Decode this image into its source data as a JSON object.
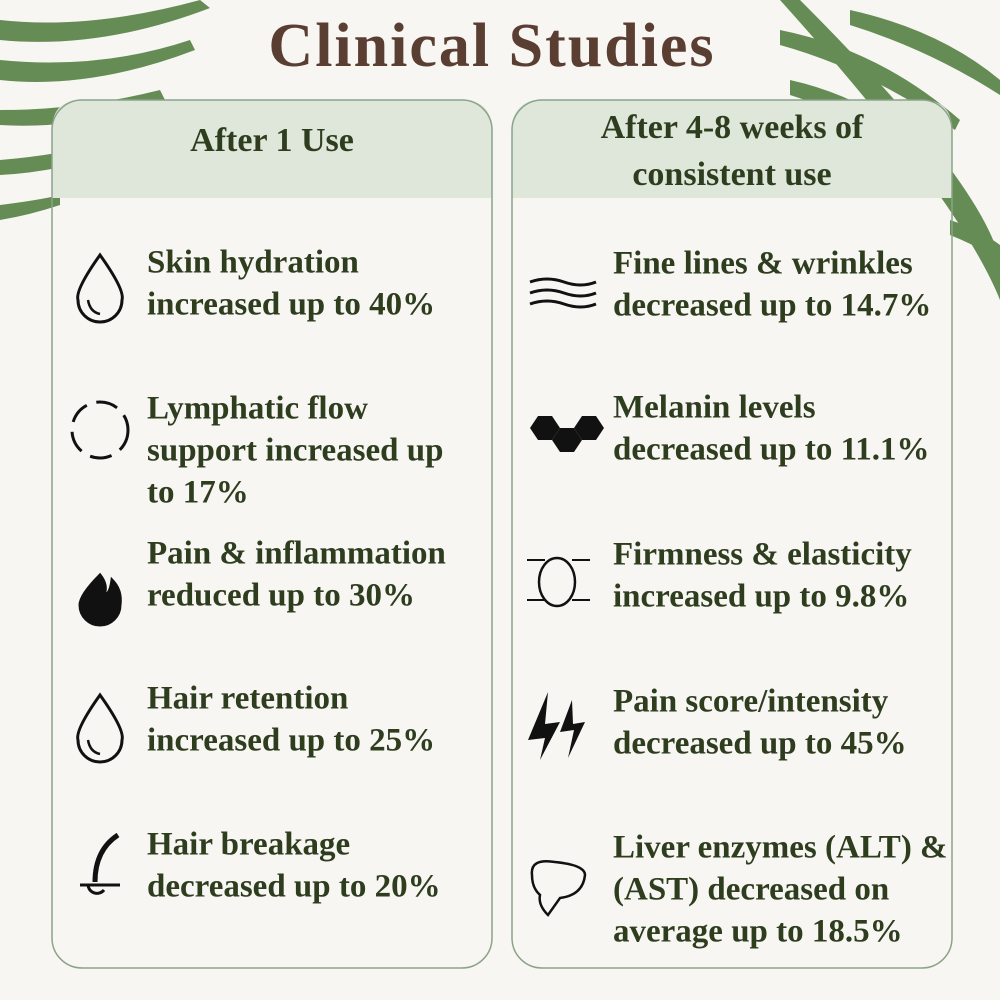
{
  "title": "Clinical Studies",
  "columns": [
    {
      "header": [
        "After 1 Use"
      ],
      "items": [
        {
          "lines": [
            "Skin hydration",
            "increased up to 40%"
          ]
        },
        {
          "lines": [
            "Lymphatic flow",
            "support increased up",
            "to 17%"
          ]
        },
        {
          "lines": [
            "Pain & inflammation",
            "reduced up to 30%"
          ]
        },
        {
          "lines": [
            "Hair retention",
            "increased up to 25%"
          ]
        },
        {
          "lines": [
            "Hair breakage",
            "decreased up to 20%"
          ]
        }
      ]
    },
    {
      "header": [
        "After 4-8 weeks of",
        "consistent use"
      ],
      "items": [
        {
          "lines": [
            "Fine lines & wrinkles",
            "decreased up to 14.7%"
          ]
        },
        {
          "lines": [
            "Melanin levels",
            "decreased up to 11.1%"
          ]
        },
        {
          "lines": [
            "Firmness & elasticity",
            "increased up to 9.8%"
          ]
        },
        {
          "lines": [
            "Pain score/intensity",
            "decreased up to 45%"
          ]
        },
        {
          "lines": [
            "Liver enzymes (ALT) &",
            "(AST) decreased on",
            "average up to 18.5%"
          ]
        }
      ]
    }
  ]
}
